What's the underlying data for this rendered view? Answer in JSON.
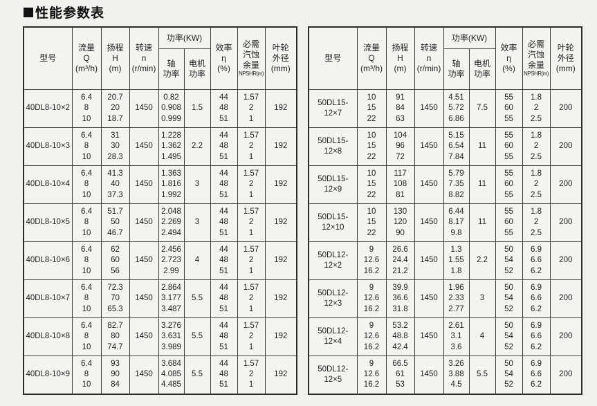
{
  "title": "性能参数表",
  "colors": {
    "border": "#3d3d3d",
    "paper": "#f2f1ee",
    "text": "#1e1e1e"
  },
  "header": {
    "model": "型号",
    "flow": "流量\nQ\n(m³/h)",
    "head": "扬程\nH\n(m)",
    "speed": "转速\nn\n(r/min)",
    "power": "功率(KW)",
    "shaft": "轴\n功率",
    "motor": "电机\n功率",
    "efficiency": "效率\nη\n(%)",
    "npshr_main": "必需\n汽蚀\n余量",
    "npshr_sub": "NPSHR(m)",
    "impeller": "叶轮\n外径\n(mm)"
  },
  "tables": [
    {
      "rows": [
        {
          "model": "40DL8-10×2",
          "q": [
            "6.4",
            "8",
            "10"
          ],
          "h": [
            "20.7",
            "20",
            "18.7"
          ],
          "n": "1450",
          "shaft": [
            "0.82",
            "0.908",
            "0.999"
          ],
          "motor": "1.5",
          "eff": [
            "44",
            "48",
            "51"
          ],
          "npshr": [
            "1.57",
            "2",
            "1"
          ],
          "dia": "192"
        },
        {
          "model": "40DL8-10×3",
          "q": [
            "6.4",
            "8",
            "10"
          ],
          "h": [
            "31",
            "30",
            "28.3"
          ],
          "n": "1450",
          "shaft": [
            "1.228",
            "1.362",
            "1.495"
          ],
          "motor": "2.2",
          "eff": [
            "44",
            "48",
            "51"
          ],
          "npshr": [
            "1.57",
            "2",
            "1"
          ],
          "dia": "192"
        },
        {
          "model": "40DL8-10×4",
          "q": [
            "6.4",
            "8",
            "10"
          ],
          "h": [
            "41.3",
            "40",
            "37.3"
          ],
          "n": "1450",
          "shaft": [
            "1.363",
            "1.816",
            "1.992"
          ],
          "motor": "3",
          "eff": [
            "44",
            "48",
            "51"
          ],
          "npshr": [
            "1.57",
            "2",
            "1"
          ],
          "dia": "192"
        },
        {
          "model": "40DL8-10×5",
          "q": [
            "6.4",
            "8",
            "10"
          ],
          "h": [
            "51.7",
            "50",
            "46.7"
          ],
          "n": "1450",
          "shaft": [
            "2.048",
            "2.269",
            "2.494"
          ],
          "motor": "3",
          "eff": [
            "44",
            "48",
            "51"
          ],
          "npshr": [
            "1.57",
            "2",
            "1"
          ],
          "dia": "192"
        },
        {
          "model": "40DL8-10×6",
          "q": [
            "6.4",
            "8",
            "10"
          ],
          "h": [
            "62",
            "60",
            "56"
          ],
          "n": "1450",
          "shaft": [
            "2.456",
            "2.723",
            "2.99"
          ],
          "motor": "4",
          "eff": [
            "44",
            "48",
            "51"
          ],
          "npshr": [
            "1.57",
            "2",
            "1"
          ],
          "dia": "192"
        },
        {
          "model": "40DL8-10×7",
          "q": [
            "6.4",
            "8",
            "10"
          ],
          "h": [
            "72.3",
            "70",
            "65.3"
          ],
          "n": "1450",
          "shaft": [
            "2.864",
            "3.177",
            "3.487"
          ],
          "motor": "5.5",
          "eff": [
            "44",
            "48",
            "51"
          ],
          "npshr": [
            "1.57",
            "2",
            "1"
          ],
          "dia": "192"
        },
        {
          "model": "40DL8-10×8",
          "q": [
            "6.4",
            "8",
            "10"
          ],
          "h": [
            "82.7",
            "80",
            "74.7"
          ],
          "n": "1450",
          "shaft": [
            "3.276",
            "3.631",
            "3.989"
          ],
          "motor": "5.5",
          "eff": [
            "44",
            "48",
            "51"
          ],
          "npshr": [
            "1.57",
            "2",
            "1"
          ],
          "dia": "192"
        },
        {
          "model": "40DL8-10×9",
          "q": [
            "6.4",
            "8",
            "10"
          ],
          "h": [
            "93",
            "90",
            "84"
          ],
          "n": "1450",
          "shaft": [
            "3.684",
            "4.085",
            "4.485"
          ],
          "motor": "5.5",
          "eff": [
            "44",
            "48",
            "51"
          ],
          "npshr": [
            "1.57",
            "2",
            "1"
          ],
          "dia": "192"
        }
      ]
    },
    {
      "rows": [
        {
          "model": "50DL15-12×7",
          "q": [
            "10",
            "15",
            "22"
          ],
          "h": [
            "91",
            "84",
            "63"
          ],
          "n": "1450",
          "shaft": [
            "4.51",
            "5.72",
            "6.86"
          ],
          "motor": "7.5",
          "eff": [
            "55",
            "60",
            "55"
          ],
          "npshr": [
            "1.8",
            "2",
            "2.5"
          ],
          "dia": "200"
        },
        {
          "model": "50DL15-12×8",
          "q": [
            "10",
            "15",
            "22"
          ],
          "h": [
            "104",
            "96",
            "72"
          ],
          "n": "1450",
          "shaft": [
            "5.15",
            "6.54",
            "7.84"
          ],
          "motor": "11",
          "eff": [
            "55",
            "60",
            "55"
          ],
          "npshr": [
            "1.8",
            "2",
            "2.5"
          ],
          "dia": "200"
        },
        {
          "model": "50DL15-12×9",
          "q": [
            "10",
            "15",
            "22"
          ],
          "h": [
            "117",
            "108",
            "81"
          ],
          "n": "1450",
          "shaft": [
            "5.79",
            "7.35",
            "8.82"
          ],
          "motor": "11",
          "eff": [
            "55",
            "60",
            "55"
          ],
          "npshr": [
            "1.8",
            "2",
            "2.5"
          ],
          "dia": "200"
        },
        {
          "model": "50DL15-12×10",
          "q": [
            "10",
            "15",
            "22"
          ],
          "h": [
            "130",
            "120",
            "90"
          ],
          "n": "1450",
          "shaft": [
            "6.44",
            "8.17",
            "9.8"
          ],
          "motor": "11",
          "eff": [
            "55",
            "60",
            "55"
          ],
          "npshr": [
            "1.8",
            "2",
            "2.5"
          ],
          "dia": "200"
        },
        {
          "model": "50DL12-12×2",
          "q": [
            "9",
            "12.6",
            "16.2"
          ],
          "h": [
            "26.6",
            "24.4",
            "21.2"
          ],
          "n": "1450",
          "shaft": [
            "1.3",
            "1.55",
            "1.8"
          ],
          "motor": "2.2",
          "eff": [
            "50",
            "54",
            "52"
          ],
          "npshr": [
            "6.9",
            "6.6",
            "6.2"
          ],
          "dia": "200"
        },
        {
          "model": "50DL12-12×3",
          "q": [
            "9",
            "12.6",
            "16.2"
          ],
          "h": [
            "39.9",
            "36.6",
            "31.8"
          ],
          "n": "1450",
          "shaft": [
            "1.96",
            "2.33",
            "2.77"
          ],
          "motor": "3",
          "eff": [
            "50",
            "54",
            "52"
          ],
          "npshr": [
            "6.9",
            "6.6",
            "6.2"
          ],
          "dia": "200"
        },
        {
          "model": "50DL12-12×4",
          "q": [
            "9",
            "12.6",
            "16.2"
          ],
          "h": [
            "53.2",
            "48.8",
            "42.4"
          ],
          "n": "1450",
          "shaft": [
            "2.61",
            "3.1",
            "3.6"
          ],
          "motor": "4",
          "eff": [
            "50",
            "54",
            "52"
          ],
          "npshr": [
            "6.9",
            "6.6",
            "6.2"
          ],
          "dia": "200"
        },
        {
          "model": "50DL12-12×5",
          "q": [
            "9",
            "12.6",
            "16.2"
          ],
          "h": [
            "66.5",
            "61",
            "53"
          ],
          "n": "1450",
          "shaft": [
            "3.26",
            "3.88",
            "4.5"
          ],
          "motor": "5.5",
          "eff": [
            "50",
            "54",
            "52"
          ],
          "npshr": [
            "6.9",
            "6.6",
            "6.2"
          ],
          "dia": "200"
        }
      ]
    }
  ]
}
